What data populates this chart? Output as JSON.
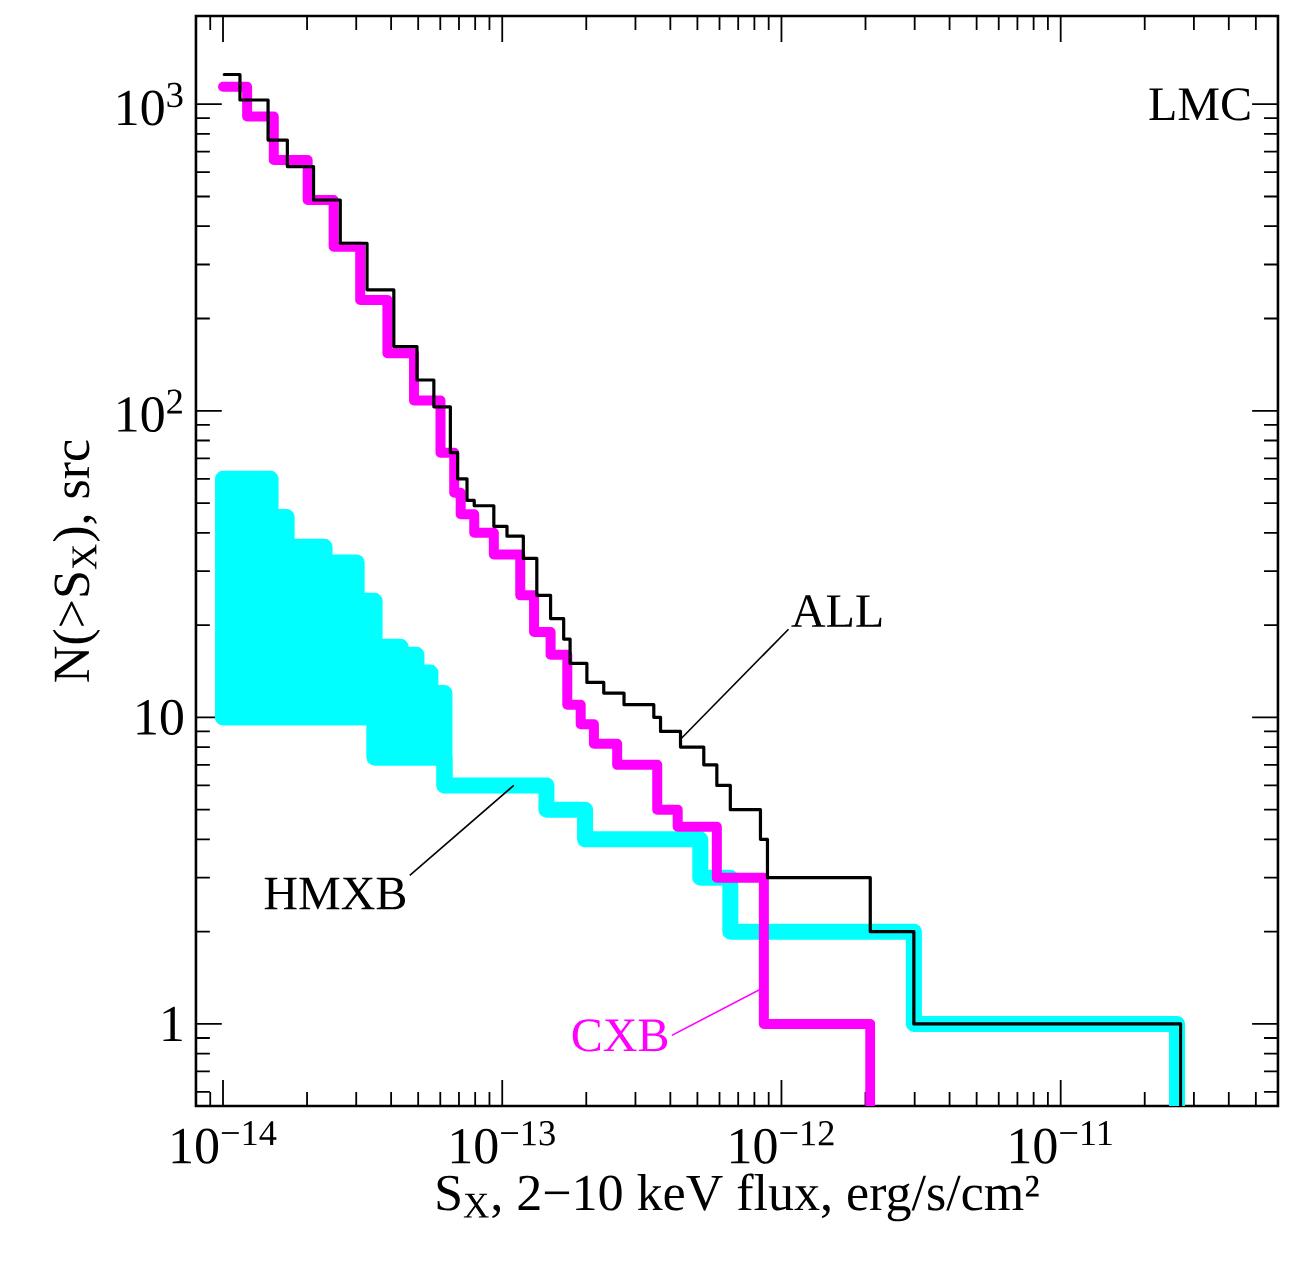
{
  "chart_data": {
    "type": "step",
    "xlabel": "S$_{X}$, 2−10 keV flux, erg/s/cm²",
    "ylabel": "N(>S$_{X}$), src",
    "log": "xy",
    "grid": false,
    "xlim": [
      8e-15,
      6e-11
    ],
    "ylim": [
      0.54,
      1940
    ],
    "xticks": [
      {
        "value": 1e-14,
        "label": "10$^{−14}$"
      },
      {
        "value": 1e-13,
        "label": "10$^{−13}$"
      },
      {
        "value": 1e-12,
        "label": "10$^{−12}$"
      },
      {
        "value": 1e-11,
        "label": "10$^{−11}$"
      }
    ],
    "yticks": [
      1,
      10,
      {
        "value": 100,
        "label": "10$^{2}$"
      },
      {
        "value": 1000,
        "label": "10$^{3}$"
      }
    ],
    "annotations": [
      "LMC",
      {
        "text": "HMXB",
        "x": 1.1e-13,
        "y": 6
      }
    ],
    "series": [
      {
        "color": "#00ffff",
        "x": [
          1e-14,
          1.48e-14,
          1.69e-14,
          2.31e-14,
          3.01e-14,
          3.49e-14,
          3.66e-14,
          4.32e-14,
          4.93e-14,
          5.53e-14,
          6.21e-14,
          1.44e-13,
          1.98e-13,
          5.12e-13,
          6.56e-13,
          2.98e-12,
          2.61e-11
        ],
        "values": [
          10,
          10,
          10,
          10,
          10,
          7.4,
          7.4,
          7.4,
          7.4,
          7.4,
          6,
          5,
          4,
          3,
          2,
          1,
          0.54
        ],
        "lower": [
          10,
          10,
          10,
          10,
          10,
          7.4,
          7.4,
          7.4,
          7.4,
          7.4,
          6,
          null,
          null,
          null,
          null,
          null,
          null
        ],
        "upper": [
          60,
          45,
          36,
          32,
          24,
          17,
          17,
          16,
          14,
          12,
          6,
          null,
          null,
          null,
          null,
          null,
          null
        ]
      },
      {
        "name": "CXB",
        "color": "#ff00ff",
        "x": [
          1e-14,
          1.22e-14,
          1.52e-14,
          2.01e-14,
          2.49e-14,
          3.1e-14,
          3.88e-14,
          4.83e-14,
          6.01e-14,
          6.73e-14,
          7.1e-14,
          7.94e-14,
          9.33e-14,
          1.16e-13,
          1.3e-13,
          1.49e-13,
          1.71e-13,
          1.91e-13,
          2.13e-13,
          2.58e-13,
          3.59e-13,
          4.25e-13,
          5.87e-13,
          8.65e-13,
          2.08e-12
        ],
        "values": [
          1140,
          912,
          658,
          487,
          343,
          230,
          154,
          108,
          73,
          54,
          46,
          40,
          34,
          25,
          19,
          16,
          11,
          9.5,
          8.2,
          7,
          5,
          4.4,
          3,
          1,
          0.54
        ]
      },
      {
        "name": "ALL",
        "color": "#000000",
        "x": [
          1.01e-14,
          1.15e-14,
          1.45e-14,
          1.7e-14,
          2.11e-14,
          2.63e-14,
          3.28e-14,
          4.09e-14,
          4.95e-14,
          5.69e-14,
          6.52e-14,
          6.92e-14,
          7.48e-14,
          7.94e-14,
          9.33e-14,
          1.04e-13,
          1.19e-13,
          1.33e-13,
          1.49e-13,
          1.66e-13,
          1.75e-13,
          2.01e-13,
          2.31e-13,
          2.73e-13,
          3.49e-13,
          3.69e-13,
          4.35e-13,
          5.27e-13,
          5.87e-13,
          6.56e-13,
          8.41e-13,
          8.91e-13,
          2.08e-12,
          2.98e-12,
          2.69e-11
        ],
        "values": [
          1250,
          1032,
          764,
          626,
          487,
          352,
          248,
          162,
          126,
          103,
          73,
          60,
          51,
          49,
          42,
          39,
          33,
          25,
          21,
          18,
          15,
          13,
          12,
          11,
          10,
          9,
          8,
          7,
          6,
          5,
          4,
          3,
          2,
          1,
          0.54
        ]
      }
    ]
  }
}
